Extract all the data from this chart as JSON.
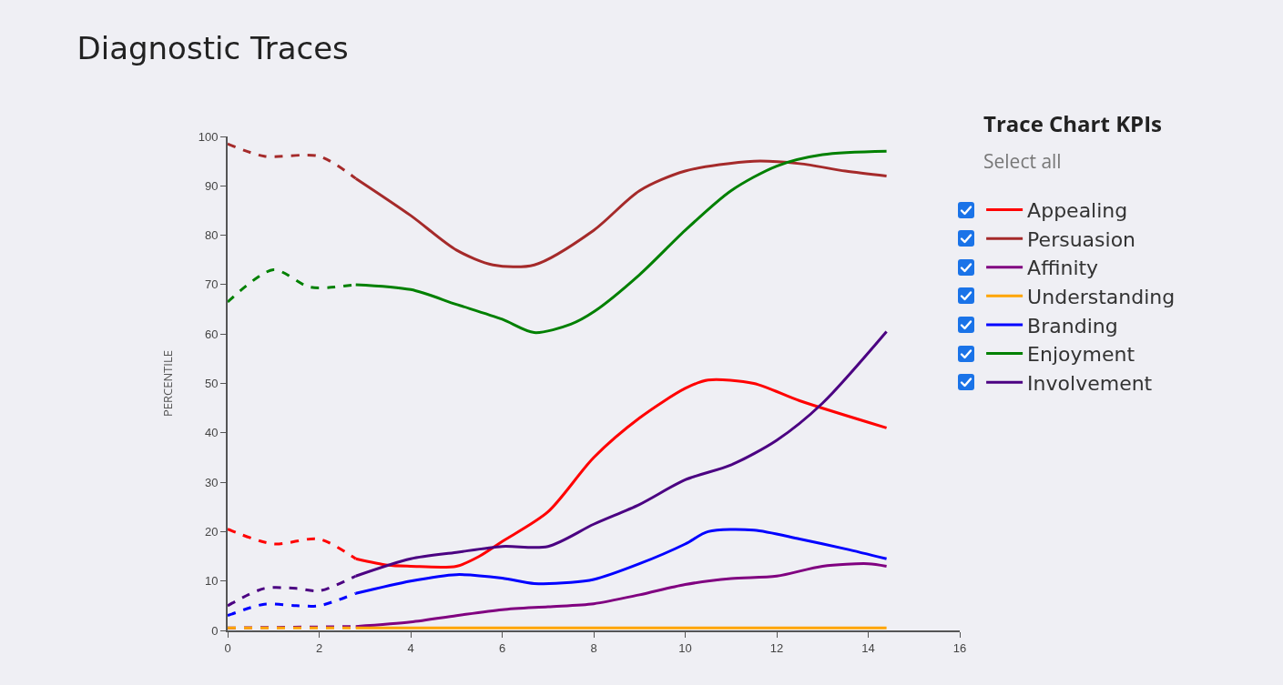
{
  "chart_data": {
    "type": "line",
    "title": "Diagnostic Traces",
    "ylabel": "PERCENTILE",
    "legend_title": "Trace Chart KPIs",
    "annotations": [
      "Select all"
    ],
    "xlim": [
      0,
      16
    ],
    "xticks": [
      0,
      2,
      4,
      6,
      8,
      10,
      12,
      14,
      16
    ],
    "ylim": [
      0,
      100
    ],
    "yticks": [
      0,
      10,
      20,
      30,
      40,
      50,
      60,
      70,
      80,
      90,
      100
    ],
    "grid": false,
    "legend": "right",
    "marker": "none",
    "series": [
      {
        "name": "Appealing",
        "color": "#ff0000",
        "line_style": "solid",
        "x": [
          2.8,
          3.5,
          4,
          5,
          5.5,
          6,
          7,
          8,
          9,
          10,
          10.5,
          11.5,
          12.5,
          14.4
        ],
        "values": [
          14.5,
          13.2,
          13,
          13,
          15,
          18,
          24,
          35,
          43,
          49,
          50.7,
          50,
          46.5,
          41
        ]
      },
      {
        "name": "Persuasion",
        "color": "#a52a2a",
        "line_style": "solid",
        "x": [
          2.8,
          4,
          5,
          5.8,
          6.7,
          8,
          9,
          10,
          11.5,
          12.5,
          13.5,
          14.4
        ],
        "values": [
          91.5,
          84,
          77,
          74,
          74,
          81,
          89,
          93,
          95,
          94.5,
          93,
          92
        ]
      },
      {
        "name": "Affinity",
        "color": "#800080",
        "line_style": "solid",
        "x": [
          2.8,
          4,
          5,
          6,
          7,
          8,
          9,
          10,
          11,
          12,
          13,
          14,
          14.4
        ],
        "values": [
          0.8,
          1.7,
          3,
          4.2,
          4.8,
          5.4,
          7.2,
          9.3,
          10.5,
          11,
          13,
          13.5,
          13
        ]
      },
      {
        "name": "Understanding",
        "color": "#ffa500",
        "line_style": "solid",
        "x": [
          2.8,
          14.4
        ],
        "values": [
          0.5,
          0.5
        ]
      },
      {
        "name": "Branding",
        "color": "#0000ff",
        "line_style": "solid",
        "x": [
          2.8,
          4,
          5,
          6,
          6.7,
          7.5,
          8,
          9,
          10,
          10.5,
          11.5,
          12.5,
          13.5,
          14.4
        ],
        "values": [
          7.5,
          10,
          11.3,
          10.6,
          9.5,
          9.7,
          10.3,
          13.5,
          17.5,
          20,
          20.3,
          18.5,
          16.5,
          14.5
        ]
      },
      {
        "name": "Enjoyment",
        "color": "#008000",
        "line_style": "solid",
        "x": [
          2.8,
          4,
          5,
          6,
          6.7,
          7.5,
          8,
          9,
          10,
          11,
          12,
          13,
          14.4
        ],
        "values": [
          70,
          69,
          66,
          63,
          60.3,
          62,
          64.5,
          72,
          81,
          89,
          94,
          96.3,
          97
        ]
      },
      {
        "name": "Involvement",
        "color": "#4b0082",
        "line_style": "solid",
        "x": [
          2.8,
          4,
          5,
          6,
          7,
          8,
          9,
          10,
          11,
          12,
          13,
          14.4
        ],
        "values": [
          11,
          14.5,
          15.8,
          17,
          17,
          21.5,
          25.5,
          30.5,
          33.5,
          38.5,
          46,
          60.5
        ]
      },
      {
        "color": "#ff0000",
        "line_style": "dashed",
        "x": [
          0,
          1,
          2,
          2.8
        ],
        "values": [
          20.5,
          17.5,
          18.5,
          14.5
        ]
      },
      {
        "color": "#a52a2a",
        "line_style": "dashed",
        "x": [
          0,
          0.8,
          2,
          2.8
        ],
        "values": [
          98.5,
          96,
          96,
          91.5
        ]
      },
      {
        "color": "#800080",
        "line_style": "dashed",
        "x": [
          0,
          2.8
        ],
        "values": [
          0.5,
          0.8
        ]
      },
      {
        "color": "#ffa500",
        "line_style": "dashed",
        "x": [
          0,
          2.8
        ],
        "values": [
          0.5,
          0.5
        ]
      },
      {
        "color": "#0000ff",
        "line_style": "dashed",
        "x": [
          0,
          0.8,
          1.5,
          2,
          2.8
        ],
        "values": [
          3,
          5.3,
          5,
          5,
          7.5
        ]
      },
      {
        "color": "#008000",
        "line_style": "dashed",
        "x": [
          0,
          1,
          1.8,
          2.8
        ],
        "values": [
          66.5,
          73,
          69.5,
          70
        ]
      },
      {
        "color": "#4b0082",
        "line_style": "dashed",
        "x": [
          0,
          0.8,
          1.5,
          2,
          2.8
        ],
        "values": [
          5,
          8.5,
          8.5,
          8,
          11
        ]
      }
    ]
  }
}
